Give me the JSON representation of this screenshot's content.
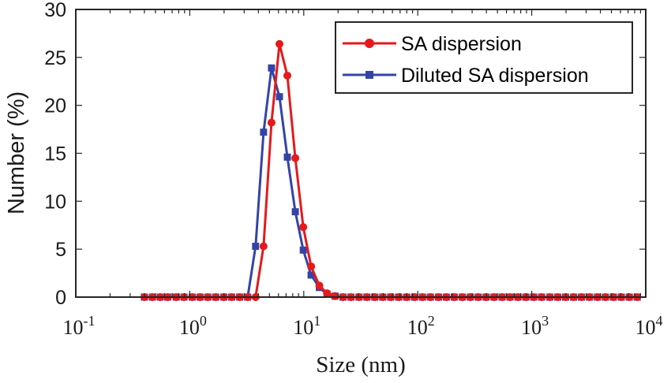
{
  "chart_data": {
    "type": "line",
    "xlabel": "Size (nm)",
    "ylabel": "Number (%)",
    "xscale": "log",
    "xlim": [
      0.1,
      10000
    ],
    "ylim": [
      0,
      30
    ],
    "x_ticks": [
      {
        "base": "10",
        "exp": "-1",
        "value": 0.1
      },
      {
        "base": "10",
        "exp": "0",
        "value": 1
      },
      {
        "base": "10",
        "exp": "1",
        "value": 10
      },
      {
        "base": "10",
        "exp": "2",
        "value": 100
      },
      {
        "base": "10",
        "exp": "3",
        "value": 1000
      },
      {
        "base": "10",
        "exp": "4",
        "value": 10000
      }
    ],
    "y_ticks": [
      "0",
      "5",
      "10",
      "15",
      "20",
      "25",
      "30"
    ],
    "legend_position": "top-right",
    "series": [
      {
        "name": "SA dispersion",
        "color": "#e41a1c",
        "marker": "circle",
        "x": [
          0.4,
          0.47,
          0.55,
          0.64,
          0.76,
          0.89,
          1.05,
          1.23,
          1.44,
          1.69,
          1.99,
          2.33,
          2.74,
          3.22,
          3.78,
          4.44,
          5.21,
          6.12,
          7.18,
          8.43,
          9.9,
          11.6,
          13.7,
          16.0,
          18.8,
          22.1,
          25.9,
          30.5,
          35.8,
          42.0,
          49.3,
          57.9,
          68.0,
          79.9,
          93.8,
          110,
          129,
          152,
          178,
          209,
          246,
          289,
          339,
          398,
          467,
          549,
          644,
          757,
          888,
          1040,
          1220,
          1440,
          1690,
          1980,
          2330,
          2730,
          3210,
          3770,
          4430,
          5200,
          6100,
          7170,
          8420
        ],
        "y": [
          0,
          0,
          0,
          0,
          0,
          0,
          0,
          0,
          0,
          0,
          0,
          0,
          0,
          0,
          0,
          5.3,
          18.2,
          26.4,
          23.1,
          14.5,
          7.3,
          3.2,
          1.2,
          0.4,
          0.1,
          0,
          0,
          0,
          0,
          0,
          0,
          0,
          0,
          0,
          0,
          0,
          0,
          0,
          0,
          0,
          0,
          0,
          0,
          0,
          0,
          0,
          0,
          0,
          0,
          0,
          0,
          0,
          0,
          0,
          0,
          0,
          0,
          0,
          0,
          0,
          0,
          0,
          0
        ]
      },
      {
        "name": "Diluted SA dispersion",
        "color": "#3444a6",
        "marker": "square",
        "x": [
          0.4,
          0.47,
          0.55,
          0.64,
          0.76,
          0.89,
          1.05,
          1.23,
          1.44,
          1.69,
          1.99,
          2.33,
          2.74,
          3.22,
          3.78,
          4.44,
          5.21,
          6.12,
          7.18,
          8.43,
          9.9,
          11.6,
          13.7,
          16.0,
          18.8,
          22.1,
          25.9,
          30.5,
          35.8,
          42.0,
          49.3,
          57.9,
          68.0,
          79.9,
          93.8,
          110,
          129,
          152,
          178,
          209,
          246,
          289,
          339,
          398,
          467,
          549,
          644,
          757,
          888,
          1040,
          1220,
          1440,
          1690,
          1980,
          2330,
          2730,
          3210,
          3770,
          4430,
          5200,
          6100,
          7170,
          8420
        ],
        "y": [
          0,
          0,
          0,
          0,
          0,
          0,
          0,
          0,
          0,
          0,
          0,
          0,
          0,
          0,
          5.3,
          17.2,
          23.9,
          20.9,
          14.6,
          8.9,
          4.9,
          2.3,
          1.0,
          0.3,
          0.1,
          0,
          0,
          0,
          0,
          0,
          0,
          0,
          0,
          0,
          0,
          0,
          0,
          0,
          0,
          0,
          0,
          0,
          0,
          0,
          0,
          0,
          0,
          0,
          0,
          0,
          0,
          0,
          0,
          0,
          0,
          0,
          0,
          0,
          0,
          0,
          0,
          0,
          0
        ]
      }
    ]
  }
}
